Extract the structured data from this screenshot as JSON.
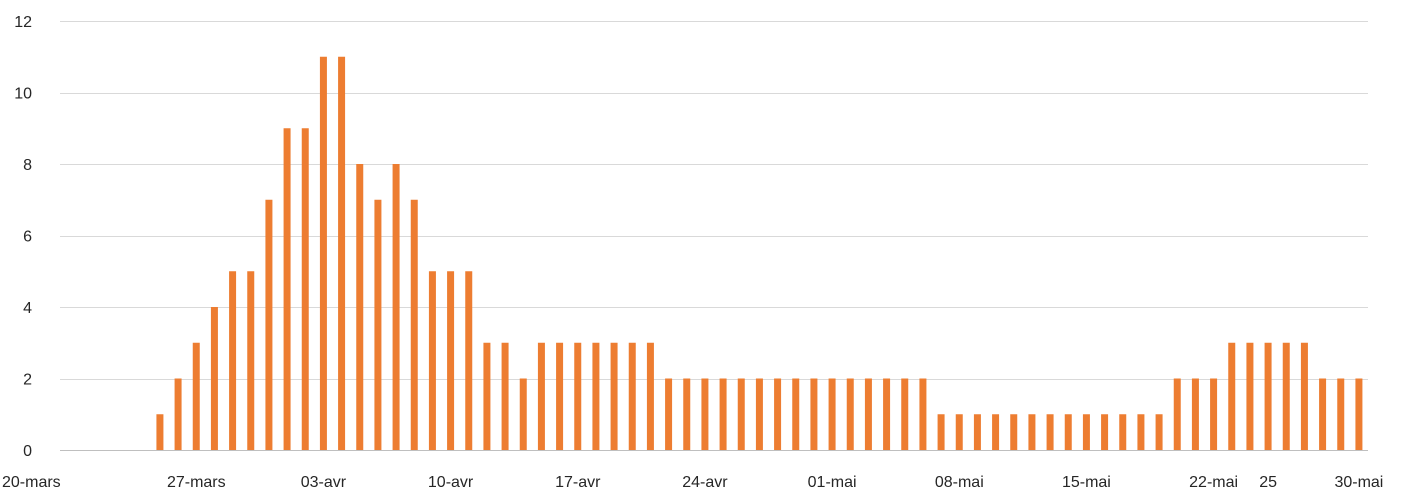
{
  "chart_data": {
    "type": "bar",
    "title": "",
    "xlabel": "",
    "ylabel": "",
    "ylim": [
      0,
      12
    ],
    "yticks": [
      0,
      2,
      4,
      6,
      8,
      10,
      12
    ],
    "grid": true,
    "legend": "none",
    "bar_color": "#ED7D31",
    "x_start": "20-mars",
    "x_end": "30-mai",
    "xtick_labels": [
      {
        "day": 0,
        "label": "20-mars"
      },
      {
        "day": 7,
        "label": "27-mars"
      },
      {
        "day": 14,
        "label": "03-avr"
      },
      {
        "day": 21,
        "label": "10-avr"
      },
      {
        "day": 28,
        "label": "17-avr"
      },
      {
        "day": 35,
        "label": "24-avr"
      },
      {
        "day": 42,
        "label": "01-mai"
      },
      {
        "day": 49,
        "label": "08-mai"
      },
      {
        "day": 56,
        "label": "15-mai"
      },
      {
        "day": 63,
        "label": "22-mai"
      },
      {
        "day": 66,
        "label": "25"
      },
      {
        "day": 71,
        "label": "30-mai"
      }
    ],
    "series": [
      {
        "start": "20-mars",
        "values": [
          0,
          0,
          0,
          0,
          0,
          1,
          2,
          3,
          4,
          5,
          5,
          7,
          9,
          9,
          11,
          11,
          8,
          7,
          8,
          7,
          5,
          5,
          5,
          3,
          3,
          2,
          3,
          3,
          3,
          3,
          3,
          3,
          3,
          2,
          2,
          2,
          2,
          2,
          2,
          2,
          2,
          2,
          2,
          2,
          2,
          2,
          2,
          2,
          1,
          1,
          1,
          1,
          1,
          1,
          1,
          1,
          1,
          1,
          1,
          1,
          1,
          2,
          2,
          2,
          3,
          3,
          3,
          3,
          3,
          2,
          2,
          2
        ]
      }
    ]
  }
}
